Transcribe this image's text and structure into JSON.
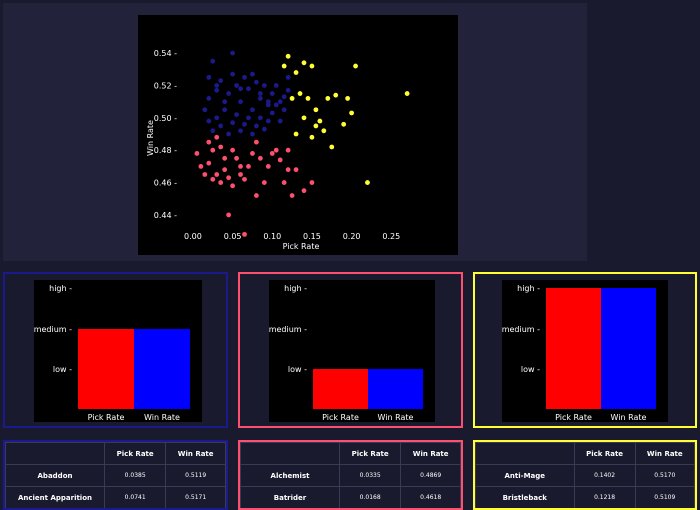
{
  "scatter": {
    "xlabel": "Pick Rate",
    "ylabel": "Win Rate",
    "xticks": [
      "0.00",
      "0.05",
      "0.10",
      "0.15",
      "0.20",
      "0.25"
    ],
    "yticks": [
      "0.44",
      "0.46",
      "0.48",
      "0.50",
      "0.52",
      "0.54"
    ]
  },
  "chart_data": [
    {
      "type": "scatter",
      "xlabel": "Pick Rate",
      "ylabel": "Win Rate",
      "xlim": [
        -0.01,
        0.29
      ],
      "ylim": [
        0.427,
        0.545
      ],
      "series": [
        {
          "color": "#1a1a8c",
          "points": [
            [
              0.025,
              0.535
            ],
            [
              0.05,
              0.54
            ],
            [
              0.02,
              0.525
            ],
            [
              0.03,
              0.52
            ],
            [
              0.035,
              0.523
            ],
            [
              0.045,
              0.515
            ],
            [
              0.05,
              0.527
            ],
            [
              0.055,
              0.52
            ],
            [
              0.06,
              0.51
            ],
            [
              0.065,
              0.525
            ],
            [
              0.07,
              0.518
            ],
            [
              0.075,
              0.505
            ],
            [
              0.08,
              0.522
            ],
            [
              0.085,
              0.512
            ],
            [
              0.09,
              0.52
            ],
            [
              0.095,
              0.508
            ],
            [
              0.1,
              0.515
            ],
            [
              0.105,
              0.52
            ],
            [
              0.11,
              0.51
            ],
            [
              0.115,
              0.505
            ],
            [
              0.12,
              0.525
            ],
            [
              0.015,
              0.505
            ],
            [
              0.02,
              0.498
            ],
            [
              0.025,
              0.492
            ],
            [
              0.03,
              0.5
            ],
            [
              0.035,
              0.495
            ],
            [
              0.04,
              0.505
            ],
            [
              0.045,
              0.49
            ],
            [
              0.05,
              0.497
            ],
            [
              0.055,
              0.502
            ],
            [
              0.06,
              0.492
            ],
            [
              0.065,
              0.496
            ],
            [
              0.07,
              0.5
            ],
            [
              0.075,
              0.49
            ],
            [
              0.08,
              0.495
            ],
            [
              0.085,
              0.5
            ],
            [
              0.09,
              0.493
            ],
            [
              0.095,
              0.498
            ],
            [
              0.1,
              0.503
            ],
            [
              0.105,
              0.508
            ],
            [
              0.11,
              0.498
            ],
            [
              0.115,
              0.513
            ],
            [
              0.12,
              0.517
            ],
            [
              0.04,
              0.51
            ],
            [
              0.06,
              0.518
            ],
            [
              0.075,
              0.527
            ],
            [
              0.085,
              0.515
            ],
            [
              0.02,
              0.512
            ],
            [
              0.095,
              0.51
            ],
            [
              0.03,
              0.517
            ]
          ]
        },
        {
          "color": "#ff4f6e",
          "points": [
            [
              0.05,
              0.48
            ],
            [
              0.055,
              0.475
            ],
            [
              0.06,
              0.47
            ],
            [
              0.045,
              0.463
            ],
            [
              0.04,
              0.468
            ],
            [
              0.035,
              0.46
            ],
            [
              0.03,
              0.465
            ],
            [
              0.025,
              0.462
            ],
            [
              0.02,
              0.472
            ],
            [
              0.015,
              0.465
            ],
            [
              0.005,
              0.478
            ],
            [
              0.01,
              0.47
            ],
            [
              0.02,
              0.485
            ],
            [
              0.025,
              0.48
            ],
            [
              0.03,
              0.488
            ],
            [
              0.035,
              0.482
            ],
            [
              0.04,
              0.475
            ],
            [
              0.065,
              0.462
            ],
            [
              0.07,
              0.47
            ],
            [
              0.075,
              0.478
            ],
            [
              0.08,
              0.485
            ],
            [
              0.085,
              0.475
            ],
            [
              0.09,
              0.46
            ],
            [
              0.095,
              0.47
            ],
            [
              0.1,
              0.478
            ],
            [
              0.105,
              0.48
            ],
            [
              0.11,
              0.474
            ],
            [
              0.115,
              0.46
            ],
            [
              0.12,
              0.468
            ],
            [
              0.125,
              0.452
            ],
            [
              0.13,
              0.468
            ],
            [
              0.14,
              0.455
            ],
            [
              0.15,
              0.46
            ],
            [
              0.045,
              0.44
            ],
            [
              0.065,
              0.428
            ],
            [
              0.08,
              0.452
            ],
            [
              0.12,
              0.48
            ],
            [
              0.05,
              0.458
            ],
            [
              0.06,
              0.465
            ]
          ]
        },
        {
          "color": "#ffff33",
          "points": [
            [
              0.12,
              0.538
            ],
            [
              0.115,
              0.532
            ],
            [
              0.13,
              0.528
            ],
            [
              0.14,
              0.534
            ],
            [
              0.15,
              0.532
            ],
            [
              0.135,
              0.515
            ],
            [
              0.125,
              0.512
            ],
            [
              0.145,
              0.512
            ],
            [
              0.155,
              0.505
            ],
            [
              0.16,
              0.498
            ],
            [
              0.165,
              0.492
            ],
            [
              0.17,
              0.512
            ],
            [
              0.18,
              0.514
            ],
            [
              0.19,
              0.496
            ],
            [
              0.195,
              0.512
            ],
            [
              0.2,
              0.503
            ],
            [
              0.205,
              0.532
            ],
            [
              0.22,
              0.46
            ],
            [
              0.27,
              0.515
            ],
            [
              0.15,
              0.488
            ],
            [
              0.14,
              0.5
            ],
            [
              0.13,
              0.49
            ],
            [
              0.175,
              0.482
            ],
            [
              0.155,
              0.495
            ]
          ]
        }
      ]
    },
    {
      "type": "bar",
      "categories": [
        "Pick Rate",
        "Win Rate"
      ],
      "values": [
        "medium",
        "medium"
      ],
      "yticks": [
        "high",
        "medium",
        "low"
      ],
      "colors": [
        "#ff0000",
        "#0000ff"
      ]
    },
    {
      "type": "bar",
      "categories": [
        "Pick Rate",
        "Win Rate"
      ],
      "values": [
        "low",
        "low"
      ],
      "yticks": [
        "high",
        "medium",
        "low"
      ],
      "colors": [
        "#ff0000",
        "#0000ff"
      ]
    },
    {
      "type": "bar",
      "categories": [
        "Pick Rate",
        "Win Rate"
      ],
      "values": [
        "high",
        "high"
      ],
      "yticks": [
        "high",
        "medium",
        "low"
      ],
      "colors": [
        "#ff0000",
        "#0000ff"
      ]
    }
  ],
  "colors": {
    "cluster1": "#1a1a8c",
    "cluster2": "#ff4f6e",
    "cluster3": "#ffff33"
  },
  "bars": {
    "b1": {
      "yticks": [
        "high",
        "medium",
        "low"
      ],
      "xticks": [
        "Pick Rate",
        "Win Rate"
      ]
    },
    "b2": {
      "yticks": [
        "high",
        "medium",
        "low"
      ],
      "xticks": [
        "Pick Rate",
        "Win Rate"
      ]
    },
    "b3": {
      "yticks": [
        "high",
        "medium",
        "low"
      ],
      "xticks": [
        "Pick Rate",
        "Win Rate"
      ]
    }
  },
  "tables": {
    "t1": {
      "headers": [
        "",
        "Pick Rate",
        "Win Rate"
      ],
      "rows": [
        [
          "Abaddon",
          "0.0385",
          "0.5119"
        ],
        [
          "Ancient Apparition",
          "0.0741",
          "0.5171"
        ]
      ]
    },
    "t2": {
      "headers": [
        "",
        "Pick Rate",
        "Win Rate"
      ],
      "rows": [
        [
          "Alchemist",
          "0.0335",
          "0.4869"
        ],
        [
          "Batrider",
          "0.0168",
          "0.4618"
        ]
      ]
    },
    "t3": {
      "headers": [
        "",
        "Pick Rate",
        "Win Rate"
      ],
      "rows": [
        [
          "Anti-Mage",
          "0.1402",
          "0.5170"
        ],
        [
          "Bristleback",
          "0.1218",
          "0.5109"
        ]
      ]
    }
  }
}
